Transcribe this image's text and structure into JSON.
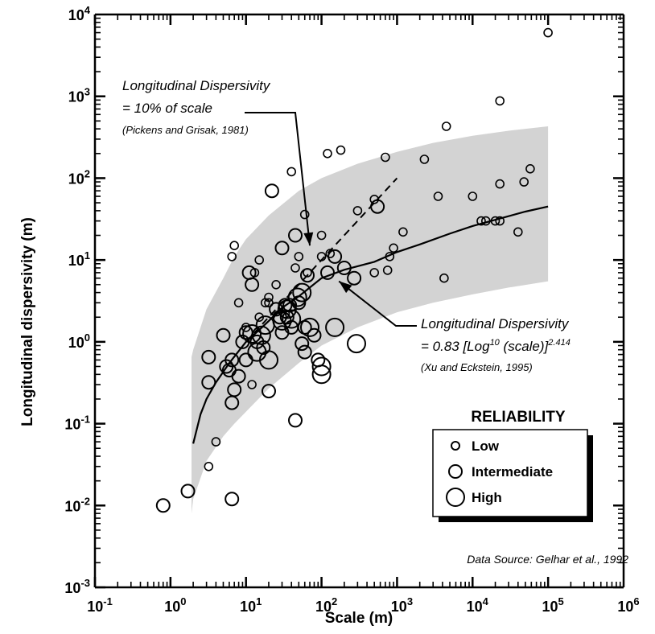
{
  "chart_data": {
    "type": "scatter",
    "xlabel": "Scale (m)",
    "ylabel": "Longitudinal dispersivity (m)",
    "xscale": "log",
    "yscale": "log",
    "xlim": [
      0.1,
      1000000
    ],
    "ylim": [
      0.001,
      10000
    ],
    "x_tick_labels": [
      {
        "base": "10",
        "exp": "-1",
        "value": 0.1
      },
      {
        "base": "10",
        "exp": "0",
        "value": 1
      },
      {
        "base": "10",
        "exp": "1",
        "value": 10
      },
      {
        "base": "10",
        "exp": "2",
        "value": 100
      },
      {
        "base": "10",
        "exp": "3",
        "value": 1000
      },
      {
        "base": "10",
        "exp": "4",
        "value": 10000
      },
      {
        "base": "10",
        "exp": "5",
        "value": 100000
      },
      {
        "base": "10",
        "exp": "6",
        "value": 1000000
      }
    ],
    "y_tick_labels": [
      {
        "base": "10",
        "exp": "-3",
        "value": 0.001
      },
      {
        "base": "10",
        "exp": "-2",
        "value": 0.01
      },
      {
        "base": "10",
        "exp": "-1",
        "value": 0.1
      },
      {
        "base": "10",
        "exp": "0",
        "value": 1
      },
      {
        "base": "10",
        "exp": "1",
        "value": 10
      },
      {
        "base": "10",
        "exp": "2",
        "value": 100
      },
      {
        "base": "10",
        "exp": "3",
        "value": 1000
      },
      {
        "base": "10",
        "exp": "4",
        "value": 10000
      }
    ],
    "envelope": {
      "color": "#d3d3d3",
      "x": [
        1.9,
        2,
        3,
        5,
        7,
        10,
        20,
        50,
        100,
        300,
        1000,
        3000,
        10000,
        30000,
        100000
      ],
      "upper": [
        0.65,
        0.8,
        2.5,
        6,
        11,
        18,
        35,
        70,
        100,
        150,
        210,
        270,
        330,
        380,
        430
      ],
      "lower": [
        0.008,
        0.012,
        0.035,
        0.07,
        0.1,
        0.14,
        0.27,
        0.55,
        0.9,
        1.5,
        2.3,
        3.0,
        3.8,
        4.6,
        5.5
      ]
    },
    "fit_line": {
      "name": "Longitudinal Dispersivity = 0.83 [Log10 (scale)]2.414",
      "style": "solid",
      "x": [
        2,
        2.5,
        3,
        4,
        5,
        6,
        8,
        10,
        15,
        20,
        30,
        50,
        70,
        100,
        200,
        500,
        1000,
        2000,
        5000,
        10000,
        20000,
        50000,
        100000
      ],
      "y": [
        0.057,
        0.13,
        0.2,
        0.32,
        0.43,
        0.55,
        0.77,
        1.0,
        1.4,
        1.8,
        2.6,
        3.6,
        4.6,
        6.0,
        7.6,
        9.5,
        12.5,
        15.5,
        21,
        26,
        31,
        39,
        45
      ]
    },
    "ten_percent_line": {
      "name": "Longitudinal Dispersivity = 10% of scale",
      "style": "dashed",
      "x": [
        10,
        1000
      ],
      "y": [
        1,
        100
      ]
    },
    "annotations": {
      "ten_percent": {
        "lines": [
          "Longitudinal Dispersivity",
          "= 10% of scale",
          "(Pickens and Grisak, 1981)"
        ],
        "arrow_tip": [
          70,
          15
        ]
      },
      "fit": {
        "line1": "Longitudinal Dispersivity",
        "line2_pre": "= 0.83 [Log",
        "line2_sup1": "10",
        "line2_mid": " (scale)]",
        "line2_sup2": "2.414",
        "line3": "(Xu and Eckstein, 1995)",
        "arrow_tip": [
          170,
          5.5
        ]
      },
      "source": "Data Source:  Gelhar et al., 1992"
    },
    "legend": {
      "title": "RELIABILITY",
      "position": "lower-right",
      "items": [
        {
          "label": "Low",
          "size": "small"
        },
        {
          "label": "Intermediate",
          "size": "medium"
        },
        {
          "label": "High",
          "size": "large"
        }
      ]
    },
    "series": [
      {
        "name": "Low",
        "size": "small",
        "points": [
          [
            6.5,
            11
          ],
          [
            7,
            15
          ],
          [
            8,
            3
          ],
          [
            13,
            7
          ],
          [
            15,
            10
          ],
          [
            18,
            3
          ],
          [
            20,
            3.5
          ],
          [
            25,
            5
          ],
          [
            33,
            2.2
          ],
          [
            40,
            120
          ],
          [
            45,
            8
          ],
          [
            50,
            11
          ],
          [
            60,
            36
          ],
          [
            65,
            7
          ],
          [
            120,
            200
          ],
          [
            180,
            220
          ],
          [
            100,
            20
          ],
          [
            130,
            12
          ],
          [
            100,
            11
          ],
          [
            300,
            40
          ],
          [
            500,
            55
          ],
          [
            700,
            180
          ],
          [
            500,
            7
          ],
          [
            750,
            7.5
          ],
          [
            900,
            14
          ],
          [
            800,
            11
          ],
          [
            1200,
            22
          ],
          [
            2300,
            170
          ],
          [
            3500,
            60
          ],
          [
            4500,
            430
          ],
          [
            4200,
            6
          ],
          [
            10000,
            60
          ],
          [
            13000,
            30
          ],
          [
            15000,
            30
          ],
          [
            20000,
            30
          ],
          [
            23000,
            30
          ],
          [
            23000,
            85
          ],
          [
            23000,
            880
          ],
          [
            40000,
            22
          ],
          [
            48000,
            90
          ],
          [
            58000,
            130
          ],
          [
            100000,
            6000
          ],
          [
            4,
            0.06
          ],
          [
            3.2,
            0.03
          ],
          [
            12,
            0.3
          ],
          [
            10,
            1.5
          ],
          [
            15,
            2
          ],
          [
            20,
            3
          ]
        ]
      },
      {
        "name": "Intermediate",
        "size": "medium",
        "points": [
          [
            3.2,
            0.32
          ],
          [
            3.2,
            0.65
          ],
          [
            5,
            1.2
          ],
          [
            5.5,
            0.5
          ],
          [
            6,
            0.45
          ],
          [
            6.5,
            0.6
          ],
          [
            6.5,
            0.18
          ],
          [
            7,
            0.26
          ],
          [
            8,
            0.38
          ],
          [
            9,
            1.0
          ],
          [
            10,
            0.6
          ],
          [
            10,
            1.3
          ],
          [
            11,
            7
          ],
          [
            12,
            5
          ],
          [
            14,
            1.0
          ],
          [
            17,
            0.85
          ],
          [
            20,
            0.25
          ],
          [
            22,
            70
          ],
          [
            25,
            2.5
          ],
          [
            28,
            2.0
          ],
          [
            30,
            14
          ],
          [
            33,
            2.8
          ],
          [
            35,
            2.0
          ],
          [
            38,
            2.8
          ],
          [
            40,
            1.5
          ],
          [
            45,
            20
          ],
          [
            50,
            3
          ],
          [
            55,
            0.95
          ],
          [
            60,
            1.5
          ],
          [
            60,
            0.75
          ],
          [
            65,
            6.5
          ],
          [
            80,
            1.2
          ],
          [
            90,
            0.6
          ],
          [
            120,
            7
          ],
          [
            150,
            11
          ],
          [
            200,
            8
          ],
          [
            270,
            6
          ],
          [
            550,
            45
          ],
          [
            0.8,
            0.01
          ],
          [
            1.7,
            0.015
          ],
          [
            6.5,
            0.012
          ],
          [
            45,
            0.11
          ],
          [
            30,
            1.3
          ]
        ]
      },
      {
        "name": "High",
        "size": "large",
        "points": [
          [
            14,
            0.75
          ],
          [
            16,
            1.2
          ],
          [
            20,
            0.6
          ],
          [
            30,
            1.8
          ],
          [
            35,
            2.5
          ],
          [
            40,
            1.9
          ],
          [
            48,
            3.5
          ],
          [
            55,
            4
          ],
          [
            70,
            1.5
          ],
          [
            100,
            0.5
          ],
          [
            100,
            0.4
          ],
          [
            150,
            1.5
          ],
          [
            290,
            0.95
          ],
          [
            12,
            1.25
          ],
          [
            18,
            1.6
          ]
        ]
      }
    ]
  }
}
